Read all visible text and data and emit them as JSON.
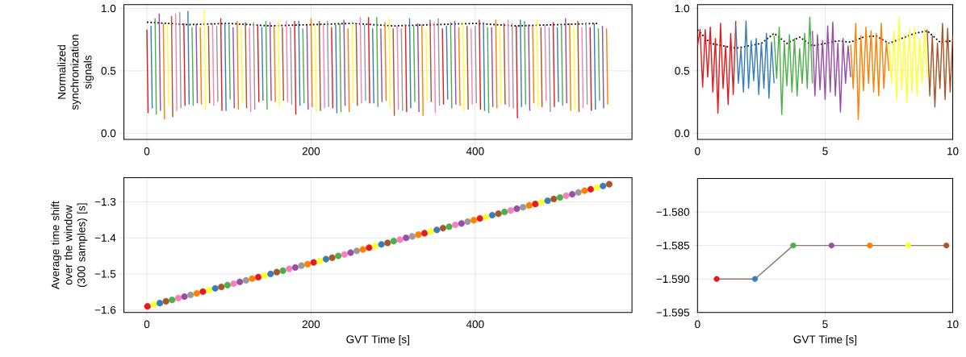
{
  "chart_data": [
    {
      "type": "line",
      "ylabel": "Normalized synchronization signals",
      "xlim": [
        -28,
        591
      ],
      "ylim": [
        -0.05,
        1.03
      ],
      "xticks": [
        0,
        200,
        400
      ],
      "yticks": [
        {
          "value": 0,
          "label": "0.0"
        },
        {
          "value": 0.5,
          "label": "0.5"
        },
        {
          "value": 1,
          "label": "1.0"
        }
      ],
      "grid": true,
      "series": [
        {
          "color": "#000000",
          "line_style": "dotted",
          "x": [
            0,
            50,
            100,
            150,
            200,
            250,
            300,
            350,
            400,
            450,
            500,
            550
          ],
          "values": [
            0.89,
            0.87,
            0.88,
            0.86,
            0.87,
            0.88,
            0.86,
            0.87,
            0.88,
            0.86,
            0.87,
            0.88
          ]
        },
        {
          "color": "#e41a1c",
          "x": [
            0,
            1.5,
            2,
            45,
            46.5,
            47,
            90,
            91.5,
            92,
            135,
            136.5,
            137,
            180,
            181.5,
            182,
            225,
            226.5,
            227,
            270,
            271.5,
            272,
            315,
            316.5,
            317,
            360,
            361.5,
            362,
            405,
            406.5,
            407,
            450,
            451.5,
            452,
            495,
            496.5,
            497,
            540,
            541.5
          ],
          "values": [
            0.83,
            0.16,
            null,
            0.88,
            0.22,
            null,
            0.92,
            0.18,
            null,
            0.86,
            0.25,
            null,
            0.9,
            0.15,
            null,
            0.85,
            0.2,
            null,
            0.93,
            0.24,
            null,
            0.87,
            0.17,
            null,
            0.84,
            0.23,
            null,
            0.91,
            0.19,
            null,
            0.86,
            0.12,
            null,
            0.89,
            0.21,
            null,
            0.85,
            0.18
          ]
        },
        {
          "color": "#377eb8",
          "x": [
            5,
            6.5,
            7,
            50,
            51.5,
            52,
            95,
            96.5,
            97,
            140,
            141.5,
            142,
            185,
            186.5,
            187,
            230,
            231.5,
            232,
            275,
            276.5,
            277,
            320,
            321.5,
            322,
            365,
            366.5,
            367,
            410,
            411.5,
            412,
            455,
            456.5,
            457,
            500,
            501.5,
            502,
            545,
            546.5
          ],
          "values": [
            0.86,
            0.2,
            null,
            0.98,
            0.23,
            null,
            0.88,
            0.18,
            null,
            0.85,
            0.26,
            null,
            0.9,
            0.22,
            null,
            0.87,
            0.16,
            null,
            0.84,
            0.24,
            null,
            0.92,
            0.2,
            null,
            0.86,
            0.27,
            null,
            0.89,
            0.18,
            null,
            0.91,
            0.21,
            null,
            0.85,
            0.25,
            null,
            0.88,
            0.19
          ]
        },
        {
          "color": "#4daf4a",
          "x": [
            10,
            11.5,
            12,
            55,
            56.5,
            57,
            100,
            101.5,
            102,
            145,
            146.5,
            147,
            190,
            191.5,
            192,
            235,
            236.5,
            237,
            280,
            281.5,
            282,
            325,
            326.5,
            327,
            370,
            371.5,
            372,
            415,
            416.5,
            417,
            460,
            461.5,
            462,
            505,
            506.5,
            507,
            550,
            551.5
          ],
          "values": [
            0.92,
            0.15,
            null,
            0.85,
            0.22,
            null,
            0.87,
            0.27,
            null,
            0.9,
            0.19,
            null,
            0.84,
            0.24,
            null,
            0.88,
            0.17,
            null,
            0.93,
            0.21,
            null,
            0.86,
            0.25,
            null,
            0.89,
            0.2,
            null,
            0.85,
            0.16,
            null,
            0.9,
            0.23,
            null,
            0.87,
            0.22,
            null,
            0.84,
            0.26
          ]
        },
        {
          "color": "#984ea3",
          "x": [
            15,
            16.5,
            17,
            60,
            61.5,
            62,
            105,
            106.5,
            107,
            150,
            151.5,
            152,
            195,
            196.5,
            197,
            240,
            241.5,
            242,
            285,
            286.5,
            287,
            330,
            331.5,
            332,
            375,
            376.5,
            377,
            420,
            421.5,
            422,
            465,
            466.5,
            467,
            510,
            511.5,
            512,
            555,
            556.5
          ],
          "values": [
            0.96,
            0.18,
            null,
            0.87,
            0.24,
            null,
            0.85,
            0.2,
            null,
            0.89,
            0.26,
            null,
            0.86,
            0.19,
            null,
            0.91,
            0.22,
            null,
            0.84,
            0.25,
            null,
            0.88,
            0.17,
            null,
            0.9,
            0.23,
            null,
            0.85,
            0.21,
            null,
            0.87,
            0.18,
            null,
            0.92,
            0.24,
            null,
            0.86,
            0.2
          ]
        },
        {
          "color": "#ff7f00",
          "x": [
            20,
            21.5,
            22,
            65,
            66.5,
            67,
            110,
            111.5,
            112,
            155,
            156.5,
            157,
            200,
            201.5,
            202,
            245,
            246.5,
            247,
            290,
            291.5,
            292,
            335,
            336.5,
            337,
            380,
            381.5,
            382,
            425,
            426.5,
            427,
            470,
            471.5,
            472,
            515,
            516.5,
            517,
            560,
            561.5
          ],
          "values": [
            0.88,
            0.11,
            null,
            0.85,
            0.23,
            null,
            0.9,
            0.19,
            null,
            0.86,
            0.25,
            null,
            0.92,
            0.21,
            null,
            0.84,
            0.17,
            null,
            0.89,
            0.26,
            null,
            0.87,
            0.14,
            null,
            0.85,
            0.22,
            null,
            0.91,
            0.2,
            null,
            0.86,
            0.24,
            null,
            0.88,
            0.18,
            null,
            0.84,
            0.23
          ]
        },
        {
          "color": "#ffff33",
          "x": [
            25,
            26.5,
            27,
            70,
            71.5,
            72,
            115,
            116.5,
            117,
            160,
            161.5,
            162,
            205,
            206.5,
            207,
            250,
            251.5,
            252,
            295,
            296.5,
            297,
            340,
            341.5,
            342,
            385,
            386.5,
            387,
            430,
            431.5,
            432,
            475,
            476.5,
            477,
            520,
            521.5
          ],
          "values": [
            0.87,
            0.22,
            null,
            0.99,
            0.19,
            null,
            0.85,
            0.25,
            null,
            0.9,
            0.21,
            null,
            0.86,
            0.17,
            null,
            0.88,
            0.24,
            null,
            0.92,
            0.2,
            null,
            0.84,
            0.26,
            null,
            0.89,
            0.18,
            null,
            0.86,
            0.23,
            null,
            0.91,
            0.21,
            null,
            0.85,
            0.19
          ]
        },
        {
          "color": "#a65628",
          "x": [
            30,
            31.5,
            32,
            75,
            76.5,
            77,
            120,
            121.5,
            122,
            165,
            166.5,
            167,
            210,
            211.5,
            212,
            255,
            256.5,
            257,
            300,
            301.5,
            302,
            345,
            346.5,
            347,
            390,
            391.5,
            392,
            435,
            436.5,
            437,
            480,
            481.5,
            482,
            525,
            526.5
          ],
          "values": [
            0.94,
            0.13,
            null,
            0.86,
            0.24,
            null,
            0.89,
            0.2,
            null,
            0.85,
            0.26,
            null,
            0.9,
            0.18,
            null,
            0.87,
            0.22,
            null,
            0.84,
            0.14,
            null,
            0.91,
            0.25,
            null,
            0.86,
            0.19,
            null,
            0.88,
            0.23,
            null,
            0.85,
            0.21,
            null,
            0.9,
            0.17
          ]
        },
        {
          "color": "#f781bf",
          "x": [
            35,
            36.5,
            37,
            80,
            81.5,
            82,
            125,
            126.5,
            127,
            170,
            171.5,
            172,
            215,
            216.5,
            217,
            260,
            261.5,
            262,
            305,
            306.5,
            307,
            350,
            351.5,
            352,
            395,
            396.5,
            397,
            440,
            441.5,
            442,
            485,
            486.5,
            487,
            530,
            531.5
          ],
          "values": [
            0.96,
            0.18,
            null,
            0.88,
            0.22,
            null,
            0.85,
            0.17,
            null,
            0.9,
            0.25,
            null,
            0.87,
            0.2,
            null,
            0.93,
            0.24,
            null,
            0.86,
            0.19,
            null,
            0.89,
            0.16,
            null,
            0.84,
            0.23,
            null,
            0.91,
            0.21,
            null,
            0.87,
            0.26,
            null,
            0.85,
            0.2
          ]
        },
        {
          "color": "#999999",
          "x": [
            40,
            41.5,
            42,
            85,
            86.5,
            87,
            130,
            131.5,
            132,
            175,
            176.5,
            177,
            220,
            221.5,
            222,
            265,
            266.5,
            267,
            310,
            311.5,
            312,
            355,
            356.5,
            357,
            400,
            401.5,
            402,
            445,
            446.5,
            447,
            490,
            491.5,
            492,
            535,
            536.5
          ],
          "values": [
            0.97,
            0.2,
            null,
            0.86,
            0.25,
            null,
            0.89,
            0.19,
            null,
            0.85,
            0.23,
            null,
            0.9,
            0.21,
            null,
            0.87,
            0.26,
            null,
            0.84,
            0.18,
            null,
            0.92,
            0.22,
            null,
            0.86,
            0.24,
            null,
            0.88,
            0.2,
            null,
            0.85,
            0.17,
            null,
            0.89,
            0.23
          ]
        }
      ]
    },
    {
      "type": "line",
      "xlim": [
        0,
        10
      ],
      "ylim": [
        -0.05,
        1.03
      ],
      "xticks": [
        0,
        5,
        10
      ],
      "yticks": [
        {
          "value": 0,
          "label": "0.0"
        },
        {
          "value": 0.5,
          "label": "0.5"
        },
        {
          "value": 1,
          "label": "1.0"
        }
      ],
      "grid": true,
      "series": [
        {
          "color": "#000000",
          "line_style": "dotted",
          "x": [
            0,
            0.5,
            1,
            1.5,
            2,
            2.5,
            3,
            3.5,
            4,
            4.5,
            5,
            5.5,
            6,
            6.5,
            7,
            7.5,
            8,
            8.5,
            9,
            9.5,
            10
          ],
          "values": [
            0.83,
            0.72,
            0.7,
            0.68,
            0.7,
            0.72,
            0.8,
            0.72,
            0.77,
            0.7,
            0.72,
            0.74,
            0.73,
            0.77,
            0.78,
            0.72,
            0.76,
            0.8,
            0.82,
            0.73,
            0.74
          ]
        },
        {
          "color": "#e41a1c",
          "x": [
            0,
            0.1,
            0.2,
            0.3,
            0.4,
            0.5,
            0.6,
            0.7,
            0.8,
            0.9,
            1,
            1.1,
            1.2,
            1.3,
            1.4,
            1.5
          ],
          "values": [
            0.7,
            0.83,
            0.37,
            0.83,
            0.45,
            0.85,
            0.33,
            0.76,
            0.16,
            0.88,
            0.36,
            0.7,
            0.23,
            0.8,
            0.31,
            0.9
          ]
        },
        {
          "color": "#377eb8",
          "x": [
            1.5,
            1.6,
            1.7,
            1.8,
            1.9,
            2,
            2.1,
            2.2,
            2.3,
            2.4,
            2.5,
            2.6,
            2.7,
            2.8,
            2.9,
            3
          ],
          "values": [
            0.86,
            0.4,
            0.68,
            0.33,
            0.9,
            0.36,
            0.74,
            0.42,
            0.76,
            0.31,
            0.72,
            0.36,
            0.8,
            0.28,
            0.73,
            0.4
          ]
        },
        {
          "color": "#4daf4a",
          "x": [
            3,
            3.1,
            3.2,
            3.3,
            3.4,
            3.5,
            3.6,
            3.7,
            3.8,
            3.9,
            4,
            4.1,
            4.2,
            4.3,
            4.4,
            4.5
          ],
          "values": [
            0.78,
            0.44,
            0.85,
            0.15,
            0.72,
            0.38,
            0.79,
            0.33,
            0.76,
            0.3,
            0.68,
            0.4,
            0.8,
            0.36,
            0.93,
            0.4
          ]
        },
        {
          "color": "#984ea3",
          "x": [
            4.5,
            4.6,
            4.7,
            4.8,
            4.9,
            5,
            5.1,
            5.2,
            5.3,
            5.4,
            5.5,
            5.6,
            5.7,
            5.8,
            5.9,
            6
          ],
          "values": [
            0.82,
            0.3,
            0.79,
            0.35,
            0.74,
            0.27,
            0.86,
            0.33,
            0.89,
            0.3,
            0.72,
            0.17,
            0.76,
            0.4,
            0.7,
            0.45
          ]
        },
        {
          "color": "#ff7f00",
          "x": [
            6,
            6.1,
            6.2,
            6.3,
            6.4,
            6.5,
            6.6,
            6.7,
            6.8,
            6.9,
            7,
            7.1,
            7.2,
            7.3,
            7.4,
            7.5
          ],
          "values": [
            0.71,
            0.36,
            0.88,
            0.11,
            0.78,
            0.34,
            0.85,
            0.4,
            0.82,
            0.33,
            0.8,
            0.3,
            0.88,
            0.36,
            0.73,
            0.5
          ]
        },
        {
          "color": "#ffff33",
          "x": [
            7.5,
            7.6,
            7.7,
            7.8,
            7.9,
            8,
            8.1,
            8.2,
            8.3,
            8.4,
            8.5,
            8.6,
            8.7,
            8.8,
            8.9,
            9
          ],
          "values": [
            0.72,
            0.4,
            0.82,
            0.27,
            0.93,
            0.35,
            0.79,
            0.25,
            0.84,
            0.33,
            0.85,
            0.3,
            0.76,
            0.4,
            0.84,
            0.45
          ]
        },
        {
          "color": "#a65628",
          "x": [
            9,
            9.1,
            9.2,
            9.3,
            9.4,
            9.5,
            9.6,
            9.7,
            9.8,
            9.9,
            10
          ],
          "values": [
            0.83,
            0.3,
            0.78,
            0.21,
            0.72,
            0.36,
            0.88,
            0.27,
            0.84,
            0.33,
            0.78
          ]
        }
      ]
    },
    {
      "type": "scatter",
      "ylabel": "Average time shift over the window (300 samples) [s]",
      "xlabel": "GVT Time [s]",
      "xlim": [
        -28,
        591
      ],
      "ylim": [
        -1.607,
        -1.233
      ],
      "xticks": [
        0,
        200,
        400
      ],
      "yticks": [
        {
          "value": -1.6,
          "label": "−1.6"
        },
        {
          "value": -1.5,
          "label": "−1.5"
        },
        {
          "value": -1.4,
          "label": "−1.4"
        },
        {
          "value": -1.3,
          "label": "−1.3"
        }
      ],
      "grid": true,
      "marker": "circle",
      "series": [
        {
          "x": [
            0.75,
            8.25,
            15.75,
            23.25,
            30.75,
            38.25,
            45.75,
            53.25,
            60.75,
            68.25,
            75.75,
            83.25,
            90.75,
            98.25,
            105.75,
            113.25,
            120.75,
            128.25,
            135.75,
            143.25,
            150.75,
            158.25,
            165.75,
            173.25,
            180.75,
            188.25,
            195.75,
            203.25,
            210.75,
            218.25,
            225.75,
            233.25,
            240.75,
            248.25,
            255.75,
            263.25,
            270.75,
            278.25,
            285.75,
            293.25,
            300.75,
            308.25,
            315.75,
            323.25,
            330.75,
            338.25,
            345.75,
            353.25,
            360.75,
            368.25,
            375.75,
            383.25,
            390.75,
            398.25,
            405.75,
            413.25,
            420.75,
            428.25,
            435.75,
            443.25,
            450.75,
            458.25,
            465.75,
            473.25,
            480.75,
            488.25,
            495.75,
            503.25,
            510.75,
            518.25,
            525.75,
            533.25,
            540.75,
            548.25,
            555.75,
            563.25
          ],
          "values": [
            -1.59,
            -1.585,
            -1.581,
            -1.576,
            -1.572,
            -1.567,
            -1.563,
            -1.558,
            -1.554,
            -1.549,
            -1.545,
            -1.54,
            -1.536,
            -1.531,
            -1.527,
            -1.522,
            -1.518,
            -1.513,
            -1.509,
            -1.504,
            -1.5,
            -1.495,
            -1.491,
            -1.486,
            -1.482,
            -1.477,
            -1.473,
            -1.468,
            -1.464,
            -1.459,
            -1.455,
            -1.45,
            -1.446,
            -1.441,
            -1.436,
            -1.432,
            -1.427,
            -1.423,
            -1.418,
            -1.414,
            -1.409,
            -1.405,
            -1.4,
            -1.396,
            -1.391,
            -1.387,
            -1.382,
            -1.378,
            -1.373,
            -1.369,
            -1.364,
            -1.36,
            -1.355,
            -1.351,
            -1.346,
            -1.342,
            -1.337,
            -1.333,
            -1.328,
            -1.324,
            -1.319,
            -1.315,
            -1.31,
            -1.306,
            -1.301,
            -1.297,
            -1.292,
            -1.288,
            -1.283,
            -1.279,
            -1.274,
            -1.269,
            -1.265,
            -1.26,
            -1.256,
            -1.251
          ],
          "colors": [
            "#e41a1c",
            "#ffff33",
            "#377eb8",
            "#a65628",
            "#4daf4a",
            "#f781bf",
            "#984ea3",
            "#999999",
            "#ff7f00",
            "#e41a1c",
            "#ffff33",
            "#377eb8",
            "#a65628",
            "#4daf4a",
            "#f781bf",
            "#984ea3",
            "#999999",
            "#ff7f00",
            "#e41a1c",
            "#ffff33",
            "#377eb8",
            "#a65628",
            "#4daf4a",
            "#f781bf",
            "#984ea3",
            "#999999",
            "#ff7f00",
            "#e41a1c",
            "#ffff33",
            "#377eb8",
            "#a65628",
            "#4daf4a",
            "#f781bf",
            "#984ea3",
            "#999999",
            "#ff7f00",
            "#e41a1c",
            "#ffff33",
            "#377eb8",
            "#a65628",
            "#4daf4a",
            "#f781bf",
            "#984ea3",
            "#999999",
            "#ff7f00",
            "#e41a1c",
            "#ffff33",
            "#377eb8",
            "#a65628",
            "#4daf4a",
            "#f781bf",
            "#984ea3",
            "#999999",
            "#ff7f00",
            "#e41a1c",
            "#ffff33",
            "#377eb8",
            "#a65628",
            "#4daf4a",
            "#f781bf",
            "#984ea3",
            "#999999",
            "#ff7f00",
            "#e41a1c",
            "#ffff33",
            "#377eb8",
            "#a65628",
            "#4daf4a",
            "#f781bf",
            "#984ea3",
            "#999999",
            "#ff7f00",
            "#e41a1c",
            "#ffff33",
            "#377eb8",
            "#a65628"
          ]
        }
      ]
    },
    {
      "type": "line",
      "xlabel": "GVT Time [s]",
      "xlim": [
        0,
        10
      ],
      "ylim": [
        -1.595,
        -1.575
      ],
      "xticks": [
        0,
        5,
        10
      ],
      "yticks": [
        {
          "value": -1.595,
          "label": "−1.595"
        },
        {
          "value": -1.59,
          "label": "−1.590"
        },
        {
          "value": -1.585,
          "label": "−1.585"
        },
        {
          "value": -1.58,
          "label": "−1.580"
        }
      ],
      "grid": true,
      "marker": "circle",
      "series": [
        {
          "color": "#8c7a6b",
          "x": [
            0.75,
            2.25,
            3.75,
            5.25,
            6.75,
            8.25,
            9.75
          ],
          "values": [
            -1.59,
            -1.59,
            -1.585,
            -1.585,
            -1.585,
            -1.585,
            -1.585
          ],
          "colors": [
            "#e41a1c",
            "#377eb8",
            "#4daf4a",
            "#984ea3",
            "#ff7f00",
            "#ffff33",
            "#a65628"
          ]
        }
      ]
    }
  ]
}
